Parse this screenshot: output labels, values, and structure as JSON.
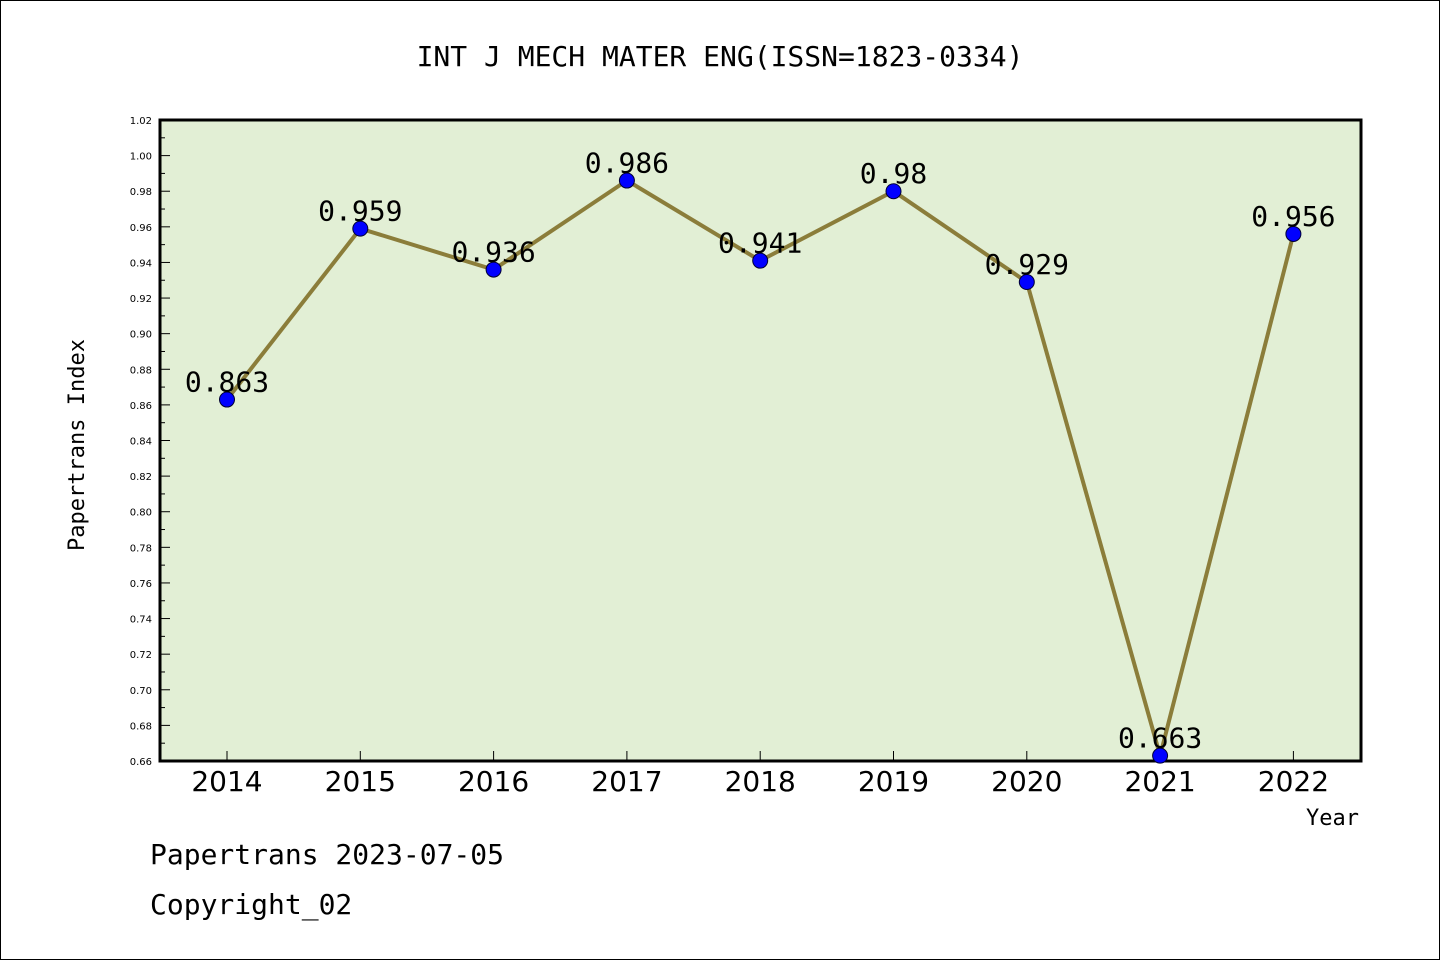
{
  "chart_data": {
    "type": "line",
    "title": "INT J MECH MATER ENG(ISSN=1823-0334)",
    "xlabel": "Year",
    "ylabel": "Papertrans Index",
    "categories": [
      "2014",
      "2015",
      "2016",
      "2017",
      "2018",
      "2019",
      "2020",
      "2021",
      "2022"
    ],
    "values": [
      0.863,
      0.959,
      0.936,
      0.986,
      0.941,
      0.98,
      0.929,
      0.663,
      0.956
    ],
    "data_labels": [
      "0.863",
      "0.959",
      "0.936",
      "0.986",
      "0.941",
      "0.98",
      "0.929",
      "0.663",
      "0.956"
    ],
    "ylim": [
      0.66,
      1.02
    ],
    "yticks": [
      "0.66",
      "0.68",
      "0.70",
      "0.72",
      "0.74",
      "0.76",
      "0.78",
      "0.80",
      "0.82",
      "0.84",
      "0.86",
      "0.88",
      "0.90",
      "0.92",
      "0.94",
      "0.96",
      "0.98",
      "1.00",
      "1.02"
    ],
    "grid": false,
    "colors": {
      "plot_background": "#e2efd5",
      "line": "#8b7d3a",
      "marker": "#0000ff"
    }
  },
  "footer": {
    "line1": "Papertrans 2023-07-05",
    "line2": "Copyright_02"
  }
}
